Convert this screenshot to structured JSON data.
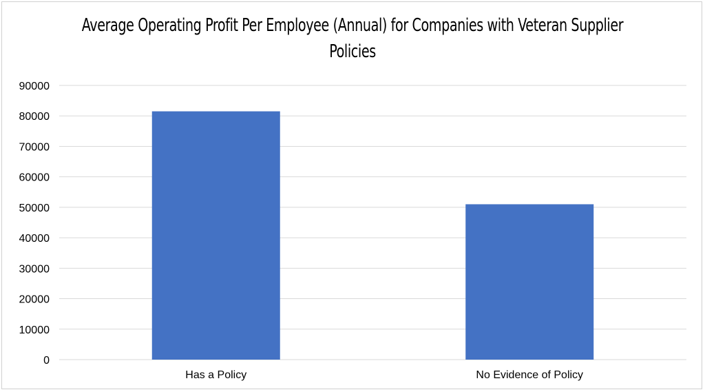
{
  "chart_data": {
    "type": "bar",
    "title": "Average Operating Profit Per Employee (Annual) for Companies with Veteran Supplier Policies",
    "categories": [
      "Has a Policy",
      "No Evidence of Policy"
    ],
    "values": [
      81500,
      51000
    ],
    "xlabel": "",
    "ylabel": "",
    "ylim": [
      0,
      90000
    ],
    "yticks": [
      "0",
      "10000",
      "20000",
      "30000",
      "40000",
      "50000",
      "60000",
      "70000",
      "80000",
      "90000"
    ],
    "grid": true,
    "legend": "none",
    "bar_color": "#4472C4",
    "grid_color": "#D9D9D9"
  }
}
